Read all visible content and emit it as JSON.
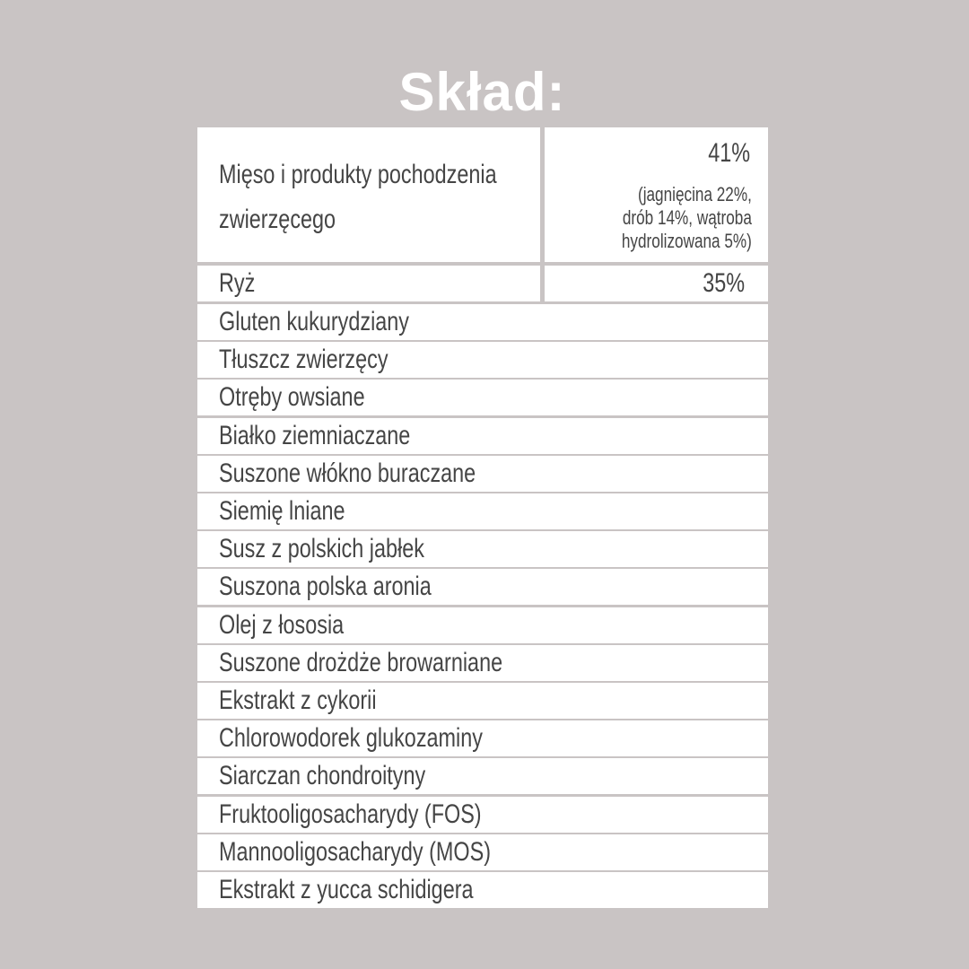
{
  "title": "Skład:",
  "rows": [
    {
      "name": "Mięso i produkty pochodzenia zwierzęcego",
      "line1": "Mięso i produkty pochodzenia",
      "line2": "zwierzęcego",
      "value": "41%",
      "detail": [
        "(jagnięcina 22%,",
        "drób 14%, wątroba",
        "hydrolizowana 5%)"
      ]
    },
    {
      "name": "Ryż",
      "value": "35%"
    }
  ],
  "ingredients": [
    "Gluten kukurydziany",
    "Tłuszcz zwierzęcy",
    "Otręby owsiane",
    "Białko ziemniaczane",
    "Suszone włókno buraczane",
    "Siemię lniane",
    "Susz z polskich jabłek",
    "Suszona polska aronia",
    "Olej z łososia",
    "Suszone drożdże browarniane",
    "Ekstrakt z cykorii",
    "Chlorowodorek glukozaminy",
    "Siarczan chondroityny",
    "Fruktooligosacharydy (FOS)",
    "Mannooligosacharydy (MOS)",
    "Ekstrakt z yucca schidigera"
  ],
  "colors": {
    "background": "#c9c4c4",
    "cell": "#ffffff",
    "text": "#454545",
    "title": "#ffffff"
  }
}
